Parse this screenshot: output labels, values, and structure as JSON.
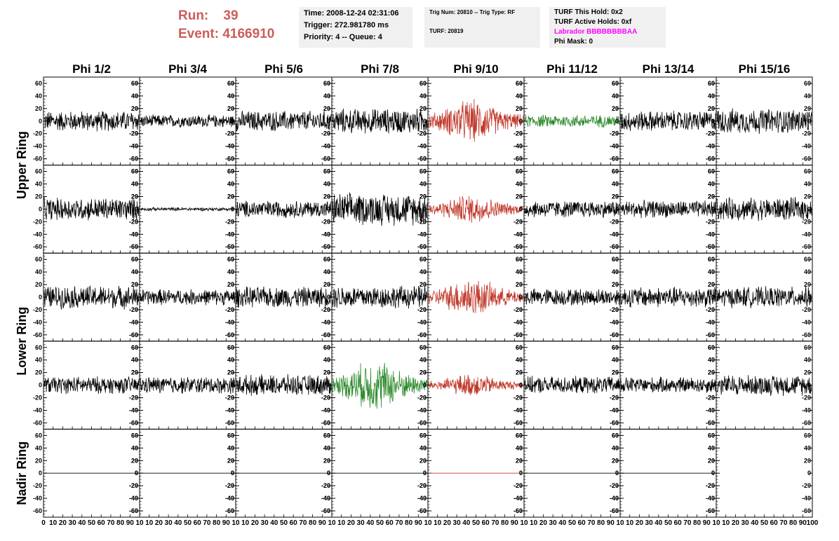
{
  "header": {
    "run_label": "Run:",
    "run_value": "39",
    "event_label": "Event:",
    "event_value": "4166910"
  },
  "info_time": {
    "time": "Time: 2008-12-24 02:31:06",
    "trigger": "Trigger: 272.981780 ms",
    "priority": "Priority: 4 -- Queue: 4"
  },
  "info_trig": {
    "trig": "Trig Num: 20810 -- Trig Type: RF",
    "turf": "TURF: 20819"
  },
  "info_turf": {
    "this_hold": "TURF This Hold: 0x2",
    "active_holds": "TURF Active Holds: 0xf",
    "labrador": "Labrador BBBBBBBBAA",
    "phi_mask": "Phi Mask: 0"
  },
  "colors": {
    "background": "#ffffff",
    "header_red": "#cd5c5c",
    "info_box": "#f0f0f0",
    "labrador": "#ff00ff",
    "trace_normal": "#000000",
    "trace_red": "#c0392b",
    "trace_green": "#2e8b2e"
  },
  "chart_data": {
    "type": "line",
    "columns": [
      "Phi 1/2",
      "Phi 3/4",
      "Phi 5/6",
      "Phi 7/8",
      "Phi 9/10",
      "Phi 11/12",
      "Phi 13/14",
      "Phi 15/16"
    ],
    "rows": [
      "Upper Ring",
      "Upper Ring",
      "Lower Ring",
      "Lower Ring",
      "Nadir Ring"
    ],
    "row_labels": [
      {
        "label": "Upper Ring",
        "rows": [
          0,
          1
        ]
      },
      {
        "label": "Lower Ring",
        "rows": [
          2,
          3
        ]
      },
      {
        "label": "Nadir Ring",
        "rows": [
          4
        ]
      }
    ],
    "ylim": [
      -70,
      70
    ],
    "yticks": [
      -60,
      -40,
      -20,
      0,
      20,
      40,
      60
    ],
    "xlim": [
      0,
      100
    ],
    "xticks": [
      0,
      10,
      20,
      30,
      40,
      50,
      60,
      70,
      80,
      90,
      100
    ],
    "x_tick_text": [
      "0",
      "10",
      "20",
      "30",
      "40",
      "50",
      "60",
      "70",
      "80",
      "90",
      "10",
      "10",
      "20",
      "30",
      "40",
      "50",
      "60",
      "70",
      "80",
      "90",
      "10",
      "10",
      "20",
      "30",
      "40",
      "50",
      "60",
      "70",
      "80",
      "90",
      "10",
      "10",
      "20",
      "30",
      "40",
      "50",
      "60",
      "70",
      "80",
      "90",
      "10",
      "10",
      "20",
      "30",
      "40",
      "50",
      "60",
      "70",
      "80",
      "90",
      "10",
      "10",
      "20",
      "30",
      "40",
      "50",
      "60",
      "70",
      "80",
      "90",
      "10",
      "10",
      "20",
      "30",
      "40",
      "50",
      "60",
      "70",
      "80",
      "90",
      "10",
      "10",
      "20",
      "30",
      "40",
      "50",
      "60",
      "70",
      "80",
      "90",
      "100"
    ],
    "traces": [
      [
        {
          "color": "black",
          "amp": 18,
          "env": "flat"
        },
        {
          "color": "black",
          "amp": 11,
          "env": "flat"
        },
        {
          "color": "black",
          "amp": 18,
          "env": "flat"
        },
        {
          "color": "black",
          "amp": 22,
          "env": "flat"
        },
        {
          "color": "red",
          "amp": 38,
          "env": "burst"
        },
        {
          "color": "green",
          "amp": 11,
          "env": "flat"
        },
        {
          "color": "black",
          "amp": 18,
          "env": "flat"
        },
        {
          "color": "black",
          "amp": 22,
          "env": "flat"
        }
      ],
      [
        {
          "color": "black",
          "amp": 20,
          "env": "flat"
        },
        {
          "color": "black",
          "amp": 3,
          "env": "flat"
        },
        {
          "color": "black",
          "amp": 15,
          "env": "flat"
        },
        {
          "color": "black",
          "amp": 28,
          "env": "flat"
        },
        {
          "color": "red",
          "amp": 26,
          "env": "burst"
        },
        {
          "color": "black",
          "amp": 15,
          "env": "flat"
        },
        {
          "color": "black",
          "amp": 15,
          "env": "flat"
        },
        {
          "color": "black",
          "amp": 20,
          "env": "flat"
        }
      ],
      [
        {
          "color": "black",
          "amp": 20,
          "env": "flat"
        },
        {
          "color": "black",
          "amp": 14,
          "env": "flat"
        },
        {
          "color": "black",
          "amp": 18,
          "env": "flat"
        },
        {
          "color": "black",
          "amp": 20,
          "env": "flat"
        },
        {
          "color": "red",
          "amp": 34,
          "env": "burst"
        },
        {
          "color": "black",
          "amp": 15,
          "env": "flat"
        },
        {
          "color": "black",
          "amp": 18,
          "env": "flat"
        },
        {
          "color": "black",
          "amp": 18,
          "env": "flat"
        }
      ],
      [
        {
          "color": "black",
          "amp": 15,
          "env": "flat"
        },
        {
          "color": "black",
          "amp": 15,
          "env": "flat"
        },
        {
          "color": "black",
          "amp": 18,
          "env": "flat"
        },
        {
          "color": "green",
          "amp": 45,
          "env": "burst"
        },
        {
          "color": "red",
          "amp": 20,
          "env": "burst"
        },
        {
          "color": "black",
          "amp": 15,
          "env": "flat"
        },
        {
          "color": "black",
          "amp": 14,
          "env": "flat"
        },
        {
          "color": "black",
          "amp": 18,
          "env": "flat"
        }
      ],
      [
        {
          "color": "black",
          "amp": 0,
          "env": "flat"
        },
        {
          "color": "black",
          "amp": 0,
          "env": "flat"
        },
        {
          "color": "black",
          "amp": 0,
          "env": "flat"
        },
        {
          "color": "black",
          "amp": 0,
          "env": "flat"
        },
        {
          "color": "red",
          "amp": 0,
          "env": "flat"
        },
        {
          "color": "black",
          "amp": 0,
          "env": "flat"
        },
        {
          "color": "black",
          "amp": 0,
          "env": "flat"
        },
        {
          "color": "none",
          "amp": 0,
          "env": "flat"
        }
      ]
    ]
  }
}
